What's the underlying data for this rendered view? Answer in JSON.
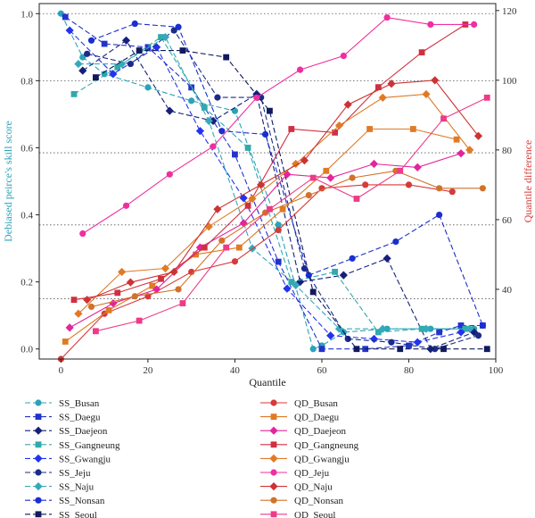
{
  "chart_data": {
    "type": "line",
    "xlabel": "Quantile",
    "ylabel_left": "Debiased peirce's skill score",
    "ylabel_right": "Quantile difference",
    "xlim": [
      -5,
      100
    ],
    "ylim_left": [
      -0.03,
      1.03
    ],
    "ylim_right": [
      20,
      122
    ],
    "x_ticks": [
      0,
      20,
      40,
      60,
      80,
      100
    ],
    "y_ticks_left": [
      0.0,
      0.2,
      0.4,
      0.6,
      0.8,
      1.0
    ],
    "y_ticks_right": [
      40,
      60,
      80,
      100,
      120
    ],
    "dotted_gridlines_left": [
      0.15,
      0.37,
      0.585,
      0.8,
      1.0
    ],
    "colors": {
      "busan": "#2aa3b8",
      "daegu": "#2233cc",
      "daejeon": "#16207a",
      "gangneung": "#30aaaa",
      "gwangju": "#2233ee",
      "jeju": "#1c2b8a",
      "naju": "#33aabb",
      "nonsan": "#1a2fd0",
      "seoul": "#101a5c",
      "qd_busan": "#d63a3a",
      "qd_daegu": "#e07a25",
      "qd_daejeon": "#e3249c",
      "qd_gangneung": "#d03040",
      "qd_gwangju": "#e07a25",
      "qd_jeju": "#ef2fa0",
      "qd_naju": "#cc3333",
      "qd_nonsan": "#d2722a",
      "qd_seoul": "#ee3a88",
      "left_axis": "#2aa3b8",
      "right_axis": "#d63a3a"
    },
    "series": [
      {
        "name": "SS_Busan",
        "axis": "left",
        "color": "busan",
        "dash": "6,3",
        "marker": "circle",
        "x": [
          0,
          5,
          10,
          20,
          30,
          40,
          50,
          58,
          60,
          65,
          75,
          85,
          95
        ],
        "y": [
          1.0,
          0.87,
          0.82,
          0.78,
          0.74,
          0.71,
          0.37,
          0.0,
          0.01,
          0.05,
          0.06,
          0.06,
          0.06
        ]
      },
      {
        "name": "SS_Daegu",
        "axis": "left",
        "color": "daegu",
        "dash": "6,3",
        "marker": "square",
        "x": [
          1,
          10,
          20,
          30,
          40,
          50,
          60,
          70,
          80,
          87,
          92,
          97
        ],
        "y": [
          0.99,
          0.91,
          0.9,
          0.78,
          0.58,
          0.26,
          0.0,
          0.0,
          0.01,
          0.05,
          0.07,
          0.07
        ]
      },
      {
        "name": "SS_Daejeon",
        "axis": "left",
        "color": "daejeon",
        "dash": "6,3",
        "marker": "diamond",
        "x": [
          5,
          15,
          25,
          35,
          45,
          55,
          65,
          75,
          85,
          95
        ],
        "y": [
          0.83,
          0.92,
          0.71,
          0.68,
          0.76,
          0.2,
          0.22,
          0.27,
          0.0,
          0.05
        ]
      },
      {
        "name": "SS_Gangneung",
        "axis": "left",
        "color": "gangneung",
        "dash": "6,3",
        "marker": "square",
        "x": [
          3,
          13,
          23,
          33,
          43,
          53,
          63,
          73,
          83,
          93
        ],
        "y": [
          0.76,
          0.84,
          0.93,
          0.72,
          0.6,
          0.2,
          0.23,
          0.05,
          0.06,
          0.06
        ]
      },
      {
        "name": "SS_Gwangju",
        "axis": "left",
        "color": "gwangju",
        "dash": "6,3",
        "marker": "diamond",
        "x": [
          2,
          12,
          22,
          32,
          42,
          52,
          62,
          72,
          82,
          92
        ],
        "y": [
          0.95,
          0.82,
          0.9,
          0.65,
          0.45,
          0.18,
          0.04,
          0.03,
          0.02,
          0.05
        ]
      },
      {
        "name": "SS_Jeju",
        "axis": "left",
        "color": "jeju",
        "dash": "6,3",
        "marker": "circle",
        "x": [
          6,
          16,
          26,
          36,
          46,
          56,
          66,
          76,
          86,
          96
        ],
        "y": [
          0.88,
          0.85,
          0.95,
          0.75,
          0.75,
          0.24,
          0.03,
          0.02,
          0.0,
          0.04
        ]
      },
      {
        "name": "SS_Naju",
        "axis": "left",
        "color": "naju",
        "dash": "6,3",
        "marker": "diamond",
        "x": [
          4,
          14,
          24,
          34,
          44,
          54,
          64,
          74,
          84,
          94
        ],
        "y": [
          0.85,
          0.85,
          0.93,
          0.68,
          0.3,
          0.19,
          0.06,
          0.06,
          0.06,
          0.06
        ]
      },
      {
        "name": "SS_Nonsan",
        "axis": "left",
        "color": "nonsan",
        "dash": "6,3",
        "marker": "circle",
        "x": [
          7,
          17,
          27,
          37,
          47,
          57,
          67,
          77,
          87,
          97
        ],
        "y": [
          0.92,
          0.97,
          0.96,
          0.65,
          0.64,
          0.22,
          0.27,
          0.32,
          0.4,
          0.07
        ]
      },
      {
        "name": "SS_Seoul",
        "axis": "left",
        "color": "seoul",
        "dash": "6,3",
        "marker": "square",
        "x": [
          8,
          18,
          28,
          38,
          48,
          58,
          68,
          78,
          88,
          98
        ],
        "y": [
          0.81,
          0.89,
          0.89,
          0.87,
          0.71,
          0.17,
          0.0,
          0.0,
          0.0,
          0.0
        ]
      },
      {
        "name": "QD_Busan",
        "axis": "right",
        "color": "qd_busan",
        "dash": "",
        "marker": "circle",
        "x": [
          0,
          10,
          20,
          30,
          40,
          50,
          60,
          70,
          80,
          90
        ],
        "y": [
          20,
          33,
          38,
          45,
          48,
          57,
          69,
          70,
          70,
          68
        ]
      },
      {
        "name": "QD_Daegu",
        "axis": "right",
        "color": "qd_daegu",
        "dash": "",
        "marker": "square",
        "x": [
          1,
          11,
          21,
          31,
          41,
          51,
          61,
          71,
          81,
          91
        ],
        "y": [
          25,
          34,
          41,
          50,
          52,
          63,
          74,
          86,
          86,
          83
        ]
      },
      {
        "name": "QD_Daejeon",
        "axis": "right",
        "color": "qd_daejeon",
        "dash": "",
        "marker": "diamond",
        "x": [
          2,
          12,
          22,
          32,
          42,
          52,
          62,
          72,
          82,
          92
        ],
        "y": [
          29,
          36,
          40,
          52,
          59,
          73,
          72,
          76,
          75,
          79
        ]
      },
      {
        "name": "QD_Gangneung",
        "axis": "right",
        "color": "qd_gangneung",
        "dash": "",
        "marker": "square",
        "x": [
          3,
          13,
          23,
          33,
          43,
          53,
          63,
          73,
          83,
          93
        ],
        "y": [
          37,
          39,
          43,
          52,
          64,
          86,
          85,
          98,
          108,
          116
        ]
      },
      {
        "name": "QD_Gwangju",
        "axis": "right",
        "color": "qd_gwangju",
        "dash": "",
        "marker": "diamond",
        "x": [
          4,
          14,
          24,
          34,
          44,
          54,
          64,
          74,
          84,
          94
        ],
        "y": [
          33,
          45,
          46,
          58,
          66,
          76,
          87,
          95,
          96,
          80
        ]
      },
      {
        "name": "QD_Jeju",
        "axis": "right",
        "color": "qd_jeju",
        "dash": "",
        "marker": "circle",
        "x": [
          5,
          15,
          25,
          35,
          45,
          55,
          65,
          75,
          85,
          95
        ],
        "y": [
          56,
          64,
          73,
          81,
          95,
          103,
          107,
          118,
          116,
          116
        ]
      },
      {
        "name": "QD_Naju",
        "axis": "right",
        "color": "qd_naju",
        "dash": "",
        "marker": "diamond",
        "x": [
          6,
          16,
          26,
          36,
          46,
          56,
          66,
          76,
          86,
          96
        ],
        "y": [
          37,
          42,
          45,
          63,
          70,
          77,
          93,
          99,
          100,
          84
        ]
      },
      {
        "name": "QD_Nonsan",
        "axis": "right",
        "color": "qd_nonsan",
        "dash": "",
        "marker": "circle",
        "x": [
          7,
          17,
          27,
          37,
          47,
          57,
          67,
          77,
          87,
          97
        ],
        "y": [
          35,
          38,
          40,
          54,
          62,
          67,
          72,
          74,
          69,
          69
        ]
      },
      {
        "name": "QD_Seoul",
        "axis": "right",
        "color": "qd_seoul",
        "dash": "",
        "marker": "square",
        "x": [
          8,
          18,
          28,
          38,
          48,
          58,
          68,
          78,
          88,
          98
        ],
        "y": [
          28,
          31,
          36,
          52,
          63,
          72,
          66,
          74,
          89,
          95
        ]
      }
    ],
    "legend_placement": "bottom, two columns"
  }
}
